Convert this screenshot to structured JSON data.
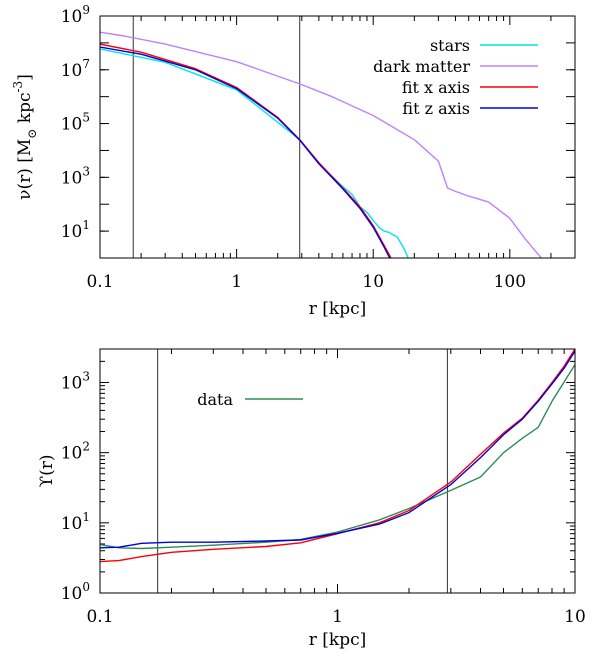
{
  "chart_data": [
    {
      "type": "line",
      "xscale": "log",
      "yscale": "log",
      "xlim": [
        0.1,
        300
      ],
      "ylim": [
        1,
        1000000000
      ],
      "xlabel": "r [kpc]",
      "ylabel": {
        "main": "ν(r) [M",
        "sub": "⊙",
        "after": " kpc",
        "sup": "-3",
        "end": "]"
      },
      "xticks": [
        {
          "v": 0.1,
          "t": "0.1"
        },
        {
          "v": 1,
          "t": "1"
        },
        {
          "v": 10,
          "t": "10"
        },
        {
          "v": 100,
          "t": "100"
        }
      ],
      "yticks": [
        {
          "v": 10,
          "b": "10",
          "e": "1"
        },
        {
          "v": 1000,
          "b": "10",
          "e": "3"
        },
        {
          "v": 100000,
          "b": "10",
          "e": "5"
        },
        {
          "v": 10000000,
          "b": "10",
          "e": "7"
        },
        {
          "v": 1000000000,
          "b": "10",
          "e": "9"
        }
      ],
      "vlines": [
        0.175,
        2.9
      ],
      "legend_position": "top-right",
      "series": [
        {
          "name": "stars",
          "color": "#00e6e6",
          "x": [
            0.1,
            0.3,
            1,
            2.9,
            4,
            5,
            6,
            7,
            8,
            9,
            10,
            11,
            12,
            13,
            15,
            17,
            18
          ],
          "y": [
            60000000,
            19000000,
            1800000,
            25000,
            3200,
            1100,
            450,
            230,
            80,
            50,
            25,
            14,
            10,
            9,
            6,
            2,
            1
          ]
        },
        {
          "name": "dark matter",
          "color": "#c080ff",
          "x": [
            0.1,
            0.15,
            0.3,
            1,
            3,
            5,
            10,
            20,
            30,
            35,
            40,
            50,
            70,
            100,
            130,
            170
          ],
          "y": [
            250000000,
            180000000,
            90000000,
            20000000,
            2800000,
            1000000,
            200000,
            25000,
            4000,
            400,
            300,
            200,
            120,
            30,
            5,
            1
          ]
        },
        {
          "name": "fit x axis",
          "color": "#ff0000",
          "x": [
            0.1,
            0.2,
            0.5,
            1,
            2,
            2.9,
            4,
            6,
            8,
            10,
            12,
            13.5
          ],
          "y": [
            90000000,
            45000000,
            11000000,
            2200000,
            170000,
            25000,
            3500,
            400,
            80,
            16,
            3,
            1
          ]
        },
        {
          "name": "fit z axis",
          "color": "#0000dd",
          "x": [
            0.1,
            0.2,
            0.5,
            1,
            2,
            2.9,
            4,
            6,
            8,
            10,
            12,
            13.2
          ],
          "y": [
            70000000,
            38000000,
            10000000,
            2000000,
            160000,
            24000,
            3200,
            370,
            70,
            14,
            2.6,
            1
          ]
        }
      ]
    },
    {
      "type": "line",
      "xscale": "log",
      "yscale": "log",
      "xlim": [
        0.1,
        10
      ],
      "ylim": [
        1,
        3000
      ],
      "xlabel": "r [kpc]",
      "ylabel": "ϒ(r)",
      "xticks": [
        {
          "v": 0.1,
          "t": "0.1"
        },
        {
          "v": 1,
          "t": "1"
        },
        {
          "v": 10,
          "t": "10"
        }
      ],
      "yticks": [
        {
          "v": 1,
          "b": "10",
          "e": "0"
        },
        {
          "v": 10,
          "b": "10",
          "e": "1"
        },
        {
          "v": 100,
          "b": "10",
          "e": "2"
        },
        {
          "v": 1000,
          "b": "10",
          "e": "3"
        }
      ],
      "vlines": [
        0.175,
        2.9
      ],
      "legend_position": "top-left",
      "series": [
        {
          "name": "data",
          "color": "#2e8b57",
          "x": [
            0.1,
            0.12,
            0.15,
            0.2,
            0.3,
            0.5,
            0.7,
            1,
            1.5,
            2,
            3,
            4,
            5,
            6,
            7,
            8,
            10
          ],
          "y": [
            4.9,
            4.4,
            4.3,
            4.5,
            4.8,
            5.3,
            5.8,
            7.4,
            11,
            16,
            29,
            45,
            100,
            160,
            230,
            540,
            1800
          ]
        },
        {
          "name": "",
          "color": "#ff0000",
          "x": [
            0.1,
            0.12,
            0.15,
            0.2,
            0.3,
            0.5,
            0.7,
            1,
            1.5,
            2,
            3,
            4,
            5,
            6,
            7,
            8,
            9,
            10
          ],
          "y": [
            2.8,
            2.9,
            3.3,
            3.8,
            4.2,
            4.6,
            5.2,
            7.0,
            10,
            15,
            38,
            95,
            190,
            310,
            560,
            1000,
            1700,
            3000
          ]
        },
        {
          "name": "",
          "color": "#0000dd",
          "x": [
            0.1,
            0.12,
            0.15,
            0.2,
            0.3,
            0.5,
            0.7,
            1,
            1.5,
            2,
            3,
            4,
            5,
            6,
            7,
            8,
            9,
            10
          ],
          "y": [
            4.4,
            4.5,
            5.1,
            5.3,
            5.3,
            5.5,
            5.7,
            7.1,
            9.6,
            14,
            35,
            85,
            180,
            300,
            540,
            950,
            1600,
            2800
          ]
        }
      ]
    }
  ]
}
